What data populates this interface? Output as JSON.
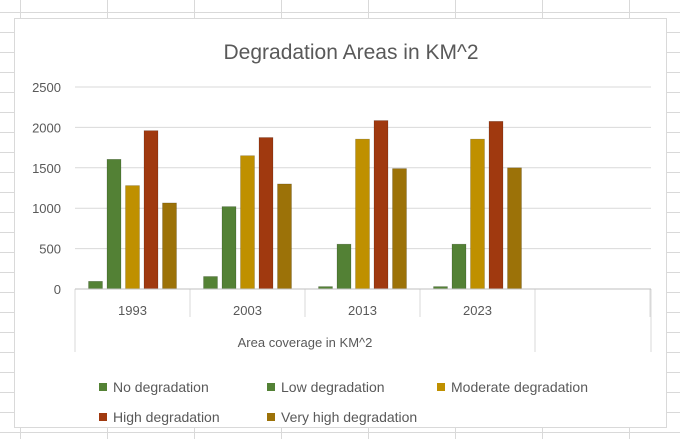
{
  "chart_data": {
    "type": "bar",
    "title": "Degradation Areas in KM^2",
    "xlabel": "Area coverage in KM^2",
    "ylabel": "",
    "categories": [
      "1993",
      "2003",
      "2013",
      "2023"
    ],
    "yticks": [
      "0",
      "500",
      "1000",
      "1500",
      "2000",
      "2500"
    ],
    "ylim": [
      0,
      2500
    ],
    "grid": true,
    "legend_position": "bottom",
    "series": [
      {
        "name": "No degradation",
        "color": "#548235",
        "values": [
          95,
          155,
          30,
          30
        ]
      },
      {
        "name": "Low degradation",
        "color": "#538135",
        "values": [
          1605,
          1020,
          555,
          555
        ]
      },
      {
        "name": "Moderate degradation",
        "color": "#BF9000",
        "values": [
          1280,
          1650,
          1855,
          1855
        ]
      },
      {
        "name": "High degradation",
        "color": "#A0390F",
        "values": [
          1960,
          1875,
          2085,
          2075
        ]
      },
      {
        "name": "Very high degradation",
        "color": "#9C7208",
        "values": [
          1065,
          1300,
          1490,
          1500
        ]
      }
    ]
  }
}
